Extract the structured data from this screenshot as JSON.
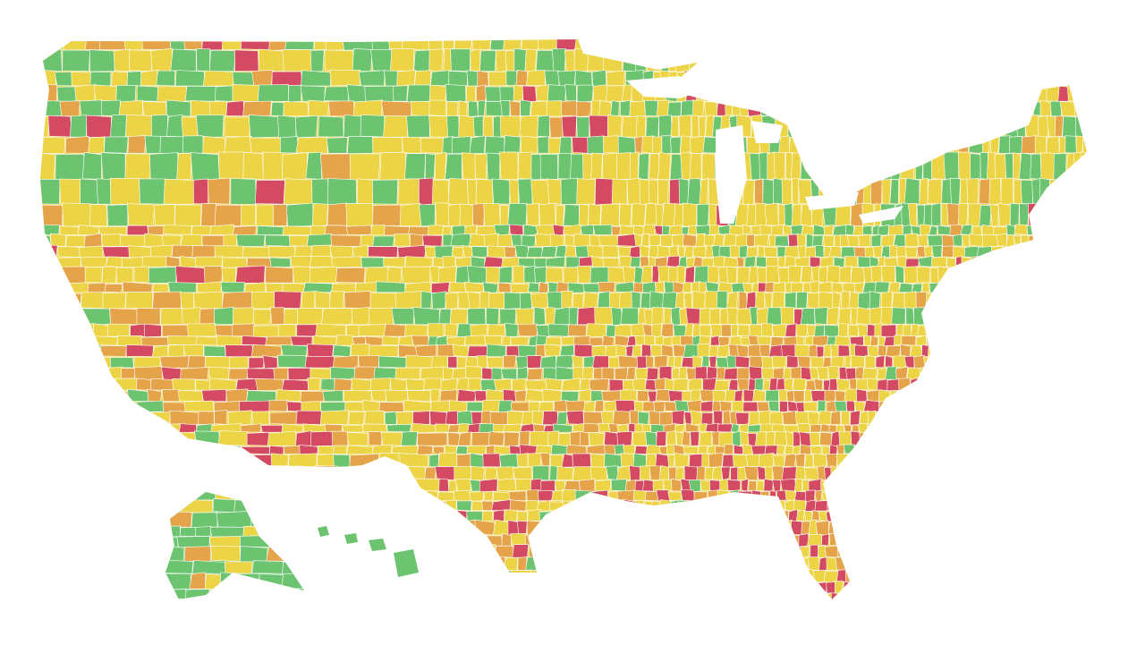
{
  "map": {
    "background": "#ffffff",
    "border_color": "#ffffff",
    "legend": [],
    "palette": {
      "green": "#6cc470",
      "yellow": "#ecd446",
      "orange": "#e5a44a",
      "red": "#d44a62"
    },
    "regions": [
      {
        "name": "contiguous-us",
        "base": "yellow"
      },
      {
        "name": "alaska",
        "base": "green"
      },
      {
        "name": "hawaii",
        "base": "green"
      }
    ],
    "color_areas": [
      {
        "name": "pacific-northwest",
        "dominant": "green"
      },
      {
        "name": "northern-plains",
        "dominant": "green"
      },
      {
        "name": "great-lakes-north",
        "dominant": "green"
      },
      {
        "name": "new-england-north",
        "dominant": "green"
      },
      {
        "name": "arizona",
        "dominant": "red"
      },
      {
        "name": "deep-south",
        "dominant": "red"
      },
      {
        "name": "south-florida",
        "dominant": "red"
      },
      {
        "name": "southwest",
        "dominant": "orange"
      },
      {
        "name": "gulf-coast",
        "dominant": "orange"
      }
    ]
  }
}
